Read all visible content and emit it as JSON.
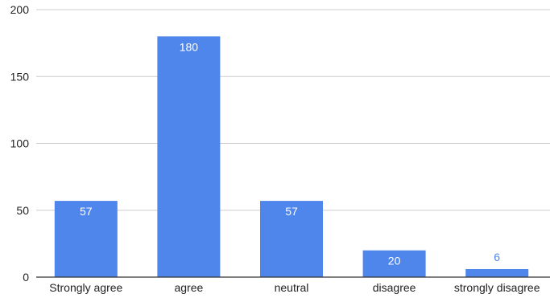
{
  "chart_data": {
    "type": "bar",
    "categories": [
      "Strongly agree",
      "agree",
      "neutral",
      "disagree",
      "strongly disagree"
    ],
    "values": [
      57,
      180,
      57,
      20,
      6
    ],
    "data_labels": [
      "57",
      "180",
      "57",
      "20",
      "6"
    ],
    "y_ticks": [
      0,
      50,
      100,
      150,
      200
    ],
    "ylim": [
      0,
      200
    ],
    "title": "",
    "xlabel": "",
    "ylabel": "",
    "grid": true,
    "legend": "none",
    "colors": {
      "bar": "#4f86ec",
      "label_inside": "#ffffff",
      "label_outside": "#4f86ec",
      "gridline": "#cccccc",
      "baseline": "#333333",
      "text": "#222222"
    }
  }
}
